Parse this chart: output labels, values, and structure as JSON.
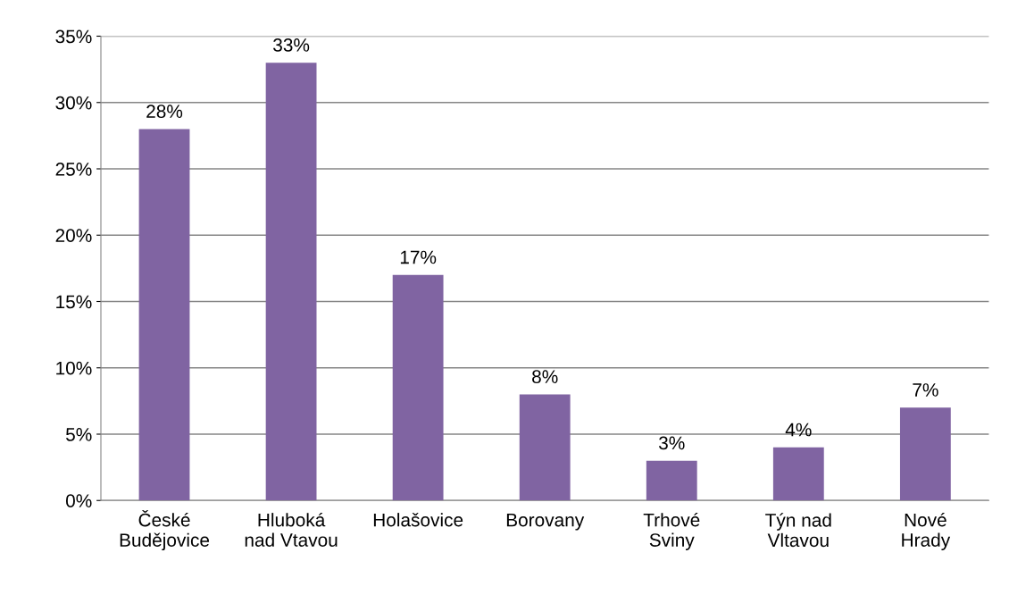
{
  "chart_data": {
    "type": "bar",
    "categories": [
      "České\nBudějovice",
      "Hluboká\nnad Vtavou",
      "Holašovice",
      "Borovany",
      "Trhové\nSviny",
      "Týn nad\nVltavou",
      "Nové\nHrady"
    ],
    "values": [
      28,
      33,
      17,
      8,
      3,
      4,
      7
    ],
    "value_labels": [
      "28%",
      "33%",
      "17%",
      "8%",
      "3%",
      "4%",
      "7%"
    ],
    "color": "#8064a2",
    "ylim": [
      0,
      35
    ],
    "yticks": [
      {
        "value": 0,
        "label": "0%"
      },
      {
        "value": 5,
        "label": "5%"
      },
      {
        "value": 10,
        "label": "10%"
      },
      {
        "value": 15,
        "label": "15%"
      },
      {
        "value": 20,
        "label": "20%"
      },
      {
        "value": 25,
        "label": "25%"
      },
      {
        "value": 30,
        "label": "30%"
      },
      {
        "value": 35,
        "label": "35%"
      }
    ],
    "grid": "y",
    "legend": false
  }
}
